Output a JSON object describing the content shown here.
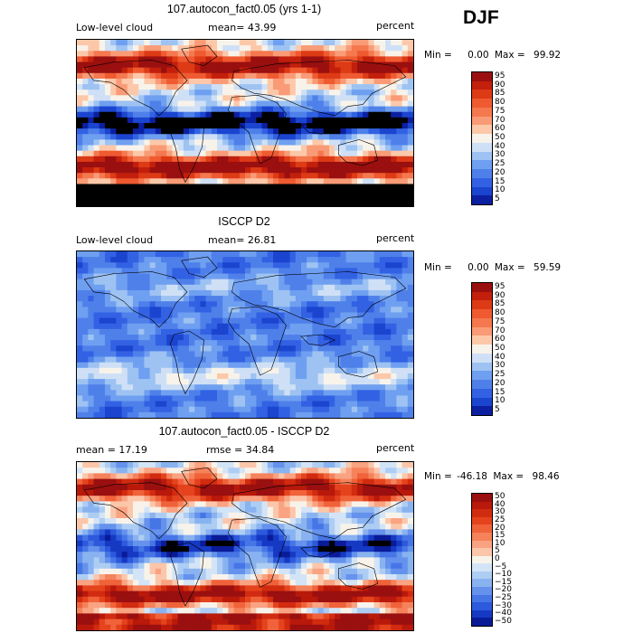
{
  "season": "DJF",
  "chart_data": [
    {
      "type": "heatmap",
      "title": "107.autocon_fact0.05 (yrs 1-1)",
      "left_label": "Low-level cloud",
      "stat_label": "mean=  43.99",
      "units": "percent",
      "min_label": "Min =",
      "min_value": "0.00",
      "max_label": "Max =",
      "max_value": "99.92",
      "levels": [
        "95",
        "90",
        "85",
        "80",
        "75",
        "70",
        "60",
        "50",
        "40",
        "30",
        "25",
        "20",
        "15",
        "10",
        "5"
      ],
      "colors": [
        "#9a0f0f",
        "#c21f0c",
        "#dd3a16",
        "#ef5a31",
        "#f5784f",
        "#f99b76",
        "#fcc8a9",
        "#f8f3ea",
        "#cfe0f6",
        "#9ec3f2",
        "#6f9ff0",
        "#4f80ea",
        "#3262e3",
        "#1b44cf",
        "#0b1fa0"
      ],
      "zonal_pattern": "strong"
    },
    {
      "type": "heatmap",
      "title": "ISCCP D2",
      "left_label": "Low-level cloud",
      "stat_label": "mean=  26.81",
      "units": "percent",
      "min_label": "Min =",
      "min_value": "0.00",
      "max_label": "Max =",
      "max_value": "59.59",
      "levels": [
        "95",
        "90",
        "85",
        "80",
        "75",
        "70",
        "60",
        "50",
        "40",
        "30",
        "25",
        "20",
        "15",
        "10",
        "5"
      ],
      "colors": [
        "#9a0f0f",
        "#c21f0c",
        "#dd3a16",
        "#ef5a31",
        "#f5784f",
        "#f99b76",
        "#fcc8a9",
        "#f8f3ea",
        "#cfe0f6",
        "#9ec3f2",
        "#6f9ff0",
        "#4f80ea",
        "#3262e3",
        "#1b44cf",
        "#0b1fa0"
      ],
      "zonal_pattern": "weak"
    },
    {
      "type": "heatmap",
      "title": "107.autocon_fact0.05 - ISCCP D2",
      "left_label": "mean =  17.19",
      "stat_label": "rmse =  34.84",
      "units": "percent",
      "min_label": "Min =",
      "min_value": "-46.18",
      "max_label": "Max =",
      "max_value": "98.46",
      "levels": [
        "50",
        "40",
        "30",
        "25",
        "20",
        "15",
        "10",
        "5",
        "0",
        "−5",
        "−10",
        "−15",
        "−20",
        "−25",
        "−30",
        "−40",
        "−50"
      ],
      "colors": [
        "#9a0f0f",
        "#b8190b",
        "#d12b10",
        "#e5431d",
        "#f0623a",
        "#f5825a",
        "#f9a382",
        "#fcc6aa",
        "#f8f3ea",
        "#d4e4f7",
        "#aecdf3",
        "#89b2f0",
        "#6592ec",
        "#4676e6",
        "#2d59dc",
        "#1639c4",
        "#0a1b98"
      ],
      "zonal_pattern": "diff"
    }
  ]
}
